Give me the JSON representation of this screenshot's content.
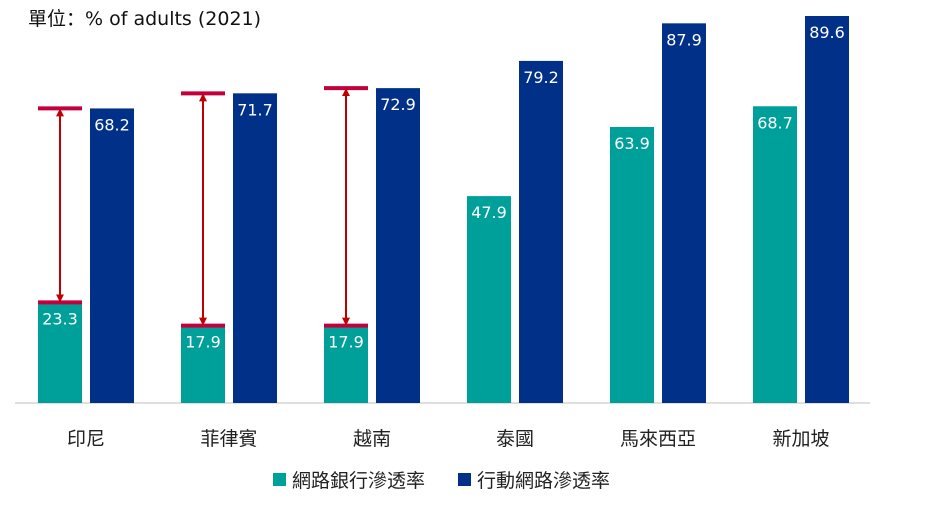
{
  "chart_data": {
    "type": "bar",
    "unit_label": "單位：% of adults (2021)",
    "categories": [
      "印尼",
      "菲律賓",
      "越南",
      "泰國",
      "馬來西亞",
      "新加坡"
    ],
    "series": [
      {
        "name": "網路銀行滲透率",
        "values": [
          23.3,
          17.9,
          17.9,
          47.9,
          63.9,
          68.7
        ],
        "color": "#00a09a"
      },
      {
        "name": "行動網路滲透率",
        "values": [
          68.2,
          71.7,
          72.9,
          79.2,
          87.9,
          89.6
        ],
        "color": "#003087"
      }
    ],
    "gap_markers": {
      "categories": [
        "印尼",
        "菲律賓",
        "越南"
      ],
      "color": "#c4003c",
      "arrow_color": "#c00000"
    },
    "ylim": [
      0,
      89.6
    ],
    "grid": false,
    "legend_position": "bottom"
  }
}
